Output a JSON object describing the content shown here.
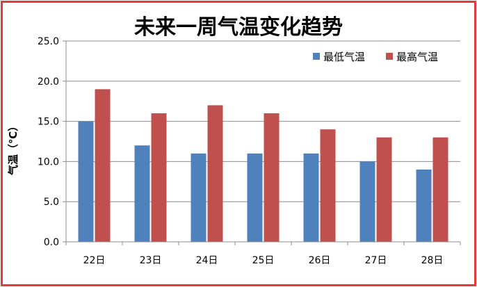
{
  "chart_data": {
    "type": "bar",
    "title": "未来一周气温变化趋势",
    "ylabel": "气温（℃）",
    "xlabel": "",
    "categories": [
      "22日",
      "23日",
      "24日",
      "25日",
      "26日",
      "27日",
      "28日"
    ],
    "series": [
      {
        "name": "最低气温",
        "color": "#4f81bd",
        "values": [
          15,
          12,
          11,
          11,
          11,
          10,
          9
        ]
      },
      {
        "name": "最高气温",
        "color": "#c0504d",
        "values": [
          19,
          16,
          17,
          16,
          14,
          13,
          13
        ]
      }
    ],
    "ylim": [
      0,
      25
    ],
    "yticks": [
      "0.0",
      "5.0",
      "10.0",
      "15.0",
      "20.0",
      "25.0"
    ],
    "ytick_values": [
      0,
      5,
      10,
      15,
      20,
      25
    ],
    "grid": true,
    "legend": "top-right",
    "frame_color": "#e53a3a"
  }
}
